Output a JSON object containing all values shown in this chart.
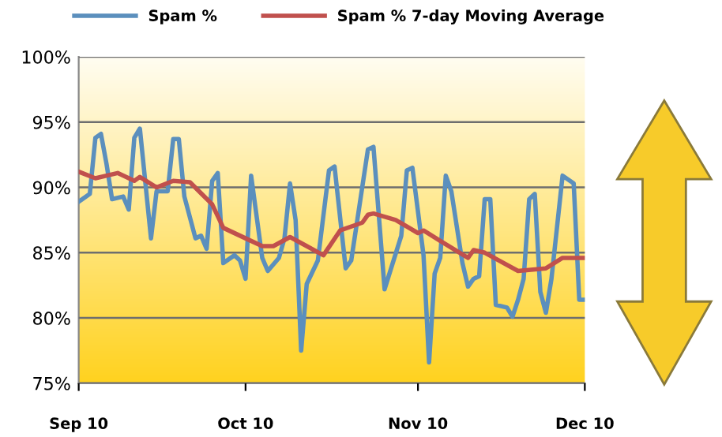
{
  "chart_data": {
    "type": "line",
    "xlim": [
      "2010-09-01",
      "2010-12-01"
    ],
    "xticks": [
      {
        "value": "2010-09-01",
        "label": "Sep 10"
      },
      {
        "value": "2010-10-01",
        "label": "Oct 10"
      },
      {
        "value": "2010-11-01",
        "label": "Nov 10"
      },
      {
        "value": "2010-12-01",
        "label": "Dec 10"
      }
    ],
    "ylim": [
      75,
      100
    ],
    "yticks": [
      {
        "value": 75,
        "label": "75%"
      },
      {
        "value": 80,
        "label": "80%"
      },
      {
        "value": 85,
        "label": "85%"
      },
      {
        "value": 90,
        "label": "90%"
      },
      {
        "value": 95,
        "label": "95%"
      },
      {
        "value": 100,
        "label": "100%"
      }
    ],
    "grid": "y",
    "legend": "top",
    "marker": "none",
    "line_style": "solid",
    "series": [
      {
        "name": "Spam %",
        "color": "#5b8fbd",
        "x": [
          "2010-09-01",
          "2010-09-03",
          "2010-09-04",
          "2010-09-05",
          "2010-09-06",
          "2010-09-07",
          "2010-09-09",
          "2010-09-10",
          "2010-09-11",
          "2010-09-12",
          "2010-09-13",
          "2010-09-14",
          "2010-09-15",
          "2010-09-17",
          "2010-09-18",
          "2010-09-19",
          "2010-09-20",
          "2010-09-22",
          "2010-09-23",
          "2010-09-24",
          "2010-09-25",
          "2010-09-26",
          "2010-09-27",
          "2010-09-29",
          "2010-09-30",
          "2010-10-01",
          "2010-10-02",
          "2010-10-04",
          "2010-10-05",
          "2010-10-07",
          "2010-10-08",
          "2010-10-09",
          "2010-10-10",
          "2010-10-11",
          "2010-10-12",
          "2010-10-14",
          "2010-10-16",
          "2010-10-17",
          "2010-10-19",
          "2010-10-20",
          "2010-10-23",
          "2010-10-24",
          "2010-10-26",
          "2010-10-29",
          "2010-10-30",
          "2010-10-31",
          "2010-11-02",
          "2010-11-03",
          "2010-11-04",
          "2010-11-05",
          "2010-11-06",
          "2010-11-07",
          "2010-11-09",
          "2010-11-10",
          "2010-11-11",
          "2010-11-12",
          "2010-11-13",
          "2010-11-14",
          "2010-11-15",
          "2010-11-17",
          "2010-11-18",
          "2010-11-19",
          "2010-11-20",
          "2010-11-21",
          "2010-11-22",
          "2010-11-23",
          "2010-11-24",
          "2010-11-25",
          "2010-11-27",
          "2010-11-29",
          "2010-11-30",
          "2010-12-01"
        ],
        "values": [
          88.9,
          89.5,
          93.8,
          94.1,
          91.8,
          89.1,
          89.3,
          88.3,
          93.8,
          94.5,
          90.3,
          86.1,
          89.7,
          89.7,
          93.7,
          93.7,
          89.3,
          86.1,
          86.3,
          85.3,
          90.5,
          91.1,
          84.2,
          84.8,
          84.4,
          83.0,
          90.9,
          84.6,
          83.6,
          84.6,
          86.1,
          90.3,
          87.5,
          77.5,
          82.6,
          84.4,
          91.3,
          91.6,
          83.8,
          84.4,
          92.9,
          93.1,
          82.2,
          86.3,
          91.3,
          91.5,
          84.8,
          76.6,
          83.4,
          84.6,
          90.9,
          89.7,
          84.2,
          82.4,
          83.0,
          83.2,
          89.1,
          89.1,
          81.0,
          80.8,
          80.1,
          81.4,
          83.0,
          89.1,
          89.5,
          82.0,
          80.4,
          83.0,
          90.9,
          90.3,
          81.4,
          81.4
        ]
      },
      {
        "name": "Spam % 7-day Moving Average",
        "color": "#c0504d",
        "x": [
          "2010-09-01",
          "2010-09-04",
          "2010-09-08",
          "2010-09-11",
          "2010-09-12",
          "2010-09-15",
          "2010-09-18",
          "2010-09-21",
          "2010-09-25",
          "2010-09-27",
          "2010-10-01",
          "2010-10-04",
          "2010-10-06",
          "2010-10-09",
          "2010-10-12",
          "2010-10-15",
          "2010-10-18",
          "2010-10-22",
          "2010-10-23",
          "2010-10-24",
          "2010-10-28",
          "2010-11-01",
          "2010-11-02",
          "2010-11-05",
          "2010-11-10",
          "2010-11-11",
          "2010-11-13",
          "2010-11-19",
          "2010-11-24",
          "2010-11-27",
          "2010-12-01"
        ],
        "values": [
          91.2,
          90.7,
          91.1,
          90.5,
          90.8,
          90.0,
          90.5,
          90.4,
          88.7,
          86.9,
          86.1,
          85.5,
          85.5,
          86.2,
          85.5,
          84.8,
          86.7,
          87.3,
          87.9,
          88.0,
          87.5,
          86.5,
          86.7,
          85.9,
          84.6,
          85.2,
          85.0,
          83.6,
          83.8,
          84.6,
          84.6
        ]
      }
    ]
  }
}
